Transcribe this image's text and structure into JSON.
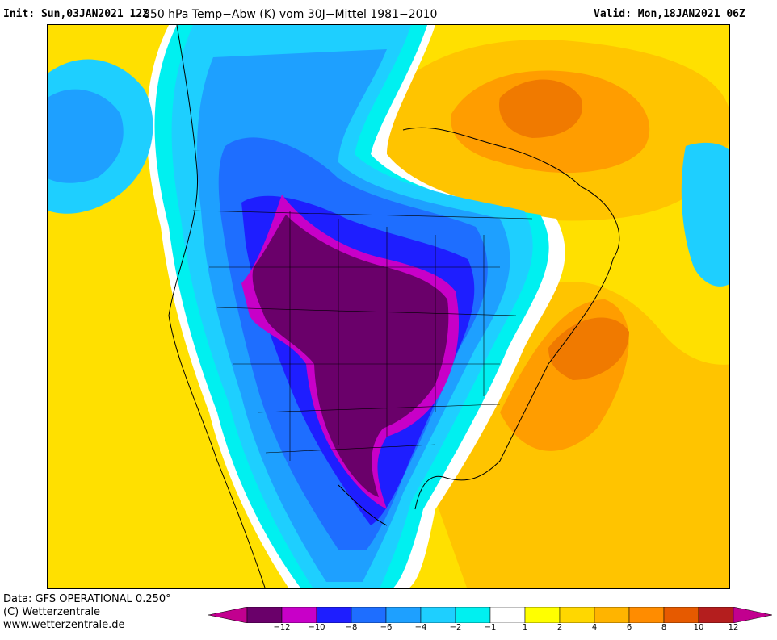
{
  "header": {
    "init": "Init: Sun,03JAN2021 12Z",
    "title": "850 hPa Temp−Abw (K) vom 30J−Mittel 1981−2010",
    "valid": "Valid: Mon,18JAN2021 06Z"
  },
  "footer": {
    "data_source": "Data: GFS OPERATIONAL 0.250°",
    "copyright": "(C) Wetterzentrale",
    "url": "www.wetterzentrale.de"
  },
  "legend": {
    "ticks": [
      "−12",
      "−10",
      "−8",
      "−6",
      "−4",
      "−2",
      "−1",
      "1",
      "2",
      "4",
      "6",
      "8",
      "10",
      "12"
    ],
    "colors": [
      "#c2008f",
      "#6a006a",
      "#c800c8",
      "#1e1eff",
      "#1e6eff",
      "#1ea0ff",
      "#1ecfff",
      "#00f0f0",
      "#ffffff",
      "#ffff00",
      "#ffd700",
      "#ffb400",
      "#ff8c00",
      "#e65a00",
      "#b41e1e",
      "#c2008f"
    ]
  },
  "map": {
    "region": "North America",
    "field": "850 hPa temperature anomaly"
  }
}
